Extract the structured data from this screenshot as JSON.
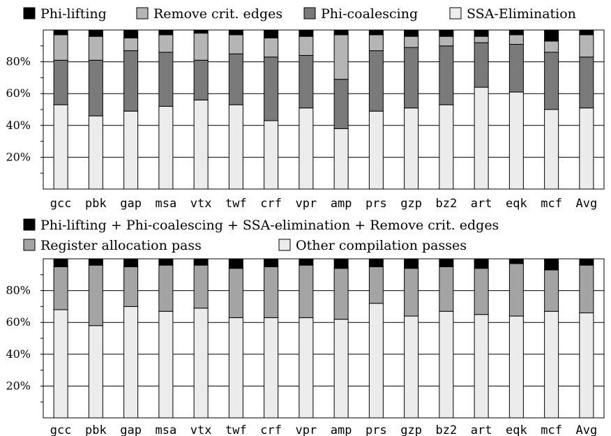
{
  "chart_data": [
    {
      "type": "bar",
      "stacked": true,
      "normalized": true,
      "categories": [
        "gcc",
        "pbk",
        "gap",
        "msa",
        "vtx",
        "twf",
        "crf",
        "vpr",
        "amp",
        "prs",
        "gzp",
        "bz2",
        "art",
        "eqk",
        "mcf",
        "Avg"
      ],
      "series": [
        {
          "name": "SSA-Elimination",
          "color": "#ececec",
          "values": [
            53,
            46,
            49,
            52,
            56,
            53,
            43,
            51,
            38,
            49,
            51,
            53,
            64,
            61,
            50,
            51
          ]
        },
        {
          "name": "Phi-coalescing",
          "color": "#7a7a7a",
          "values": [
            28,
            35,
            38,
            34,
            25,
            32,
            40,
            33,
            31,
            38,
            38,
            37,
            28,
            30,
            36,
            32
          ]
        },
        {
          "name": "Remove crit. edges",
          "color": "#b5b5b5",
          "values": [
            16,
            15,
            8,
            11,
            17,
            12,
            12,
            12,
            28,
            10,
            7,
            6,
            4,
            6,
            7,
            14
          ]
        },
        {
          "name": "Phi-lifting",
          "color": "#000000",
          "values": [
            3,
            4,
            5,
            3,
            2,
            3,
            5,
            4,
            3,
            3,
            4,
            4,
            4,
            3,
            7,
            3
          ]
        }
      ],
      "legend_order": [
        "Phi-lifting",
        "Remove crit. edges",
        "Phi-coalescing",
        "SSA-Elimination"
      ],
      "yticks": [
        "20%",
        "40%",
        "60%",
        "80%"
      ],
      "ylim": [
        0,
        100
      ],
      "grid": true,
      "legend_position": "top"
    },
    {
      "type": "bar",
      "stacked": true,
      "normalized": true,
      "categories": [
        "gcc",
        "pbk",
        "gap",
        "msa",
        "vtx",
        "twf",
        "crf",
        "vpr",
        "amp",
        "prs",
        "gzp",
        "bz2",
        "art",
        "eqk",
        "mcf",
        "Avg"
      ],
      "series": [
        {
          "name": "Other compilation passes",
          "color": "#ececec",
          "values": [
            68,
            58,
            70,
            67,
            69,
            63,
            63,
            63,
            62,
            72,
            64,
            67,
            65,
            64,
            67,
            66
          ]
        },
        {
          "name": "Register allocation pass",
          "color": "#a4a4a4",
          "values": [
            27,
            38,
            25,
            29,
            27,
            31,
            32,
            33,
            32,
            23,
            30,
            28,
            29,
            33,
            26,
            30
          ]
        },
        {
          "name": "Phi-lifting + Phi-coalescing + SSA-elimination + Remove crit. edges",
          "color": "#000000",
          "values": [
            5,
            4,
            5,
            4,
            4,
            6,
            5,
            4,
            6,
            5,
            6,
            5,
            6,
            3,
            7,
            4
          ]
        }
      ],
      "legend_order": [
        "Phi-lifting + Phi-coalescing + SSA-elimination + Remove crit. edges",
        "Register allocation pass",
        "Other compilation passes"
      ],
      "yticks": [
        "20%",
        "40%",
        "60%",
        "80%"
      ],
      "ylim": [
        0,
        100
      ],
      "grid": true,
      "legend_position": "top"
    }
  ]
}
